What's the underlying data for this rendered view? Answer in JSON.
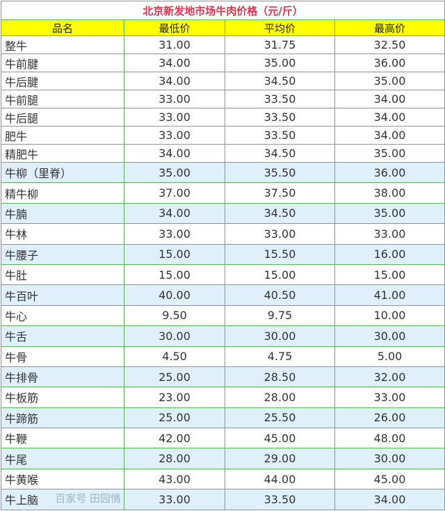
{
  "title": "北京新发地市场牛肉价格（元/斤）",
  "headers": [
    "品名",
    "最低价",
    "平均价",
    "最高价"
  ],
  "rows": [
    [
      "整牛",
      "31.00",
      "31.75",
      "32.50"
    ],
    [
      "牛前腱",
      "34.00",
      "35.00",
      "36.00"
    ],
    [
      "牛后腱",
      "34.00",
      "34.50",
      "35.00"
    ],
    [
      "牛前腿",
      "33.00",
      "33.50",
      "34.00"
    ],
    [
      "牛后腿",
      "33.00",
      "33.50",
      "34.00"
    ],
    [
      "肥牛",
      "33.00",
      "33.50",
      "34.00"
    ],
    [
      "精肥牛",
      "34.00",
      "34.50",
      "35.00"
    ],
    [
      "牛柳（里脊）",
      "35.00",
      "35.50",
      "36.00"
    ],
    [
      "精牛柳",
      "37.00",
      "37.50",
      "38.00"
    ],
    [
      "牛腩",
      "34.00",
      "34.50",
      "35.00"
    ],
    [
      "牛林",
      "33.00",
      "33.00",
      "33.00"
    ],
    [
      "牛腰子",
      "15.00",
      "15.50",
      "16.00"
    ],
    [
      "牛肚",
      "15.00",
      "15.00",
      "15.00"
    ],
    [
      "牛百叶",
      "40.00",
      "40.50",
      "41.00"
    ],
    [
      "牛心",
      "9.50",
      "9.75",
      "10.00"
    ],
    [
      "牛舌",
      "30.00",
      "30.00",
      "30.00"
    ],
    [
      "牛骨",
      "4.50",
      "4.75",
      "5.00"
    ],
    [
      "牛排骨",
      "25.00",
      "28.50",
      "32.00"
    ],
    [
      "牛板筋",
      "23.00",
      "28.00",
      "33.00"
    ],
    [
      "牛蹄筋",
      "25.00",
      "25.50",
      "26.00"
    ],
    [
      "牛鞭",
      "42.00",
      "45.00",
      "48.00"
    ],
    [
      "牛尾",
      "28.00",
      "29.00",
      "30.00"
    ],
    [
      "牛黄喉",
      "43.00",
      "44.00",
      "45.00"
    ],
    [
      "牛上脑",
      "33.00",
      "33.50",
      "34.00"
    ]
  ],
  "watermark": "百家号 田园情",
  "colors": {
    "title": "#e8304a",
    "header_bg": "#ffff00",
    "border": "#5cb85c",
    "shade": "#dff0fb"
  }
}
